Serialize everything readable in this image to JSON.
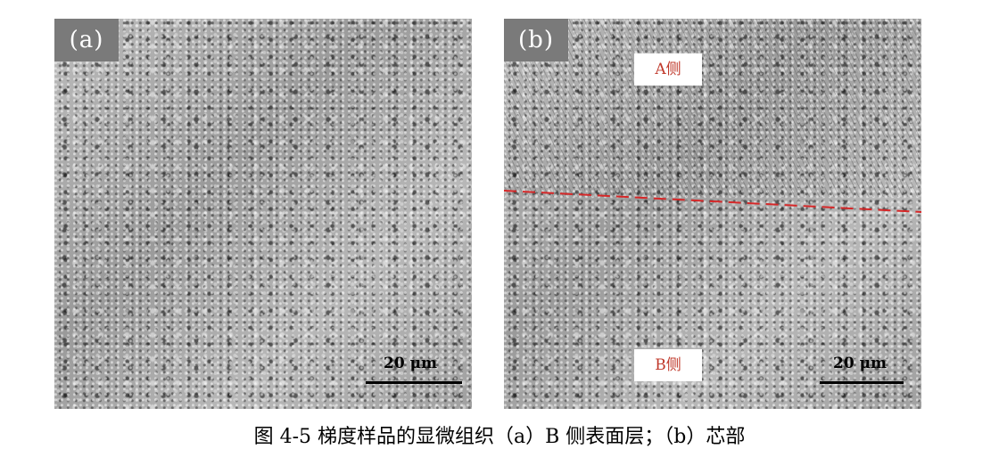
{
  "figure": {
    "panel_a": {
      "label": "(a)",
      "scale_bar": "20 μm"
    },
    "panel_b": {
      "label": "(b)",
      "scale_bar": "20 μm",
      "region_top": "A侧",
      "region_bottom": "B侧",
      "boundary_color": "#d62728"
    },
    "caption": "图 4-5 梯度样品的显微组织（a）B 侧表面层；（b）芯部"
  }
}
